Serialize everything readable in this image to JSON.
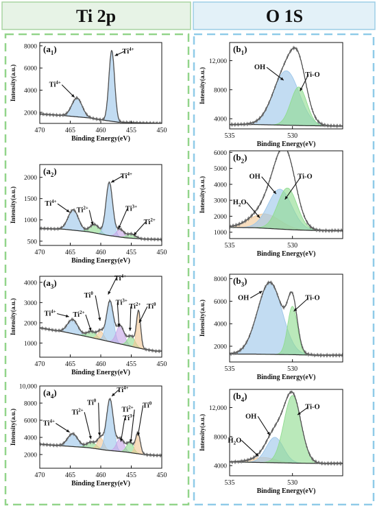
{
  "headers": {
    "left": "Ti 2p",
    "right": "O 1S"
  },
  "colors": {
    "header_left_bg": "#e7f3e6",
    "header_left_border": "#a8d4a2",
    "header_right_bg": "#e3f1f8",
    "header_right_border": "#9ccde6",
    "panel_left_border": "#92d48a",
    "panel_right_border": "#8fcbe8",
    "peak_blue": "#9cc6ea",
    "peak_green": "#8fdc8f",
    "peak_purple": "#c7a6e6",
    "peak_orange": "#f2c896",
    "raw": "#7a7a7a",
    "envelope": "#4a4a4a",
    "background": "#2a2a2a"
  },
  "chart_data": [
    {
      "id": "a1",
      "label_main": "a",
      "label_sub": "1",
      "type": "area",
      "xlabel": "Binding Energy(eV)",
      "ylabel": "Intensity(a.u.)",
      "xlim": [
        470,
        450
      ],
      "xticks": [
        470,
        465,
        460,
        455,
        450
      ],
      "ylim": [
        1000,
        8300
      ],
      "yticks": [
        2000,
        4000,
        6000,
        8000
      ],
      "ytick_labels": [
        "2000",
        "4000",
        "6000",
        "8000"
      ],
      "background_points": [
        [
          470,
          1850
        ],
        [
          466,
          1700
        ],
        [
          462,
          1500
        ],
        [
          459,
          1250
        ],
        [
          457,
          1100
        ],
        [
          454,
          1050
        ],
        [
          450,
          1000
        ]
      ],
      "peaks": [
        {
          "center": 463.9,
          "height": 1700,
          "fwhm": 2.0,
          "color": "blue"
        },
        {
          "center": 458.2,
          "height": 6400,
          "fwhm": 1.1,
          "color": "blue"
        }
      ],
      "annotations": [
        {
          "text": "Ti",
          "sup": "4+",
          "tx": 467.5,
          "ty": 4300,
          "ax": 464.3,
          "ay": 3350
        },
        {
          "text": "Ti",
          "sup": "4+",
          "tx": 455.5,
          "ty": 7300,
          "ax": 457.7,
          "ay": 7100
        }
      ]
    },
    {
      "id": "b1",
      "label_main": "b",
      "label_sub": "1",
      "type": "area",
      "xlabel": "Binding Energy(eV)",
      "ylabel": "Intensity(a.u.)",
      "xlim": [
        535,
        526
      ],
      "xticks": [
        535,
        530
      ],
      "ylim": [
        2600,
        14500
      ],
      "yticks": [
        4000,
        8000,
        12000
      ],
      "ytick_labels": [
        "4000",
        "8000",
        "12,000"
      ],
      "background_points": [
        [
          535,
          3200
        ],
        [
          533,
          3200
        ],
        [
          529,
          3050
        ],
        [
          527,
          3000
        ],
        [
          526,
          3000
        ]
      ],
      "peaks": [
        {
          "center": 530.5,
          "height": 7500,
          "fwhm": 2.4,
          "color": "blue"
        },
        {
          "center": 529.5,
          "height": 5300,
          "fwhm": 1.5,
          "color": "green"
        }
      ],
      "annotations": [
        {
          "text": "OH",
          "sup": "",
          "tx": 532.6,
          "ty": 10800,
          "ax": 530.7,
          "ay": 9300
        },
        {
          "text": "Ti-O",
          "sup": "",
          "tx": 528.4,
          "ty": 9800,
          "ax": 529.4,
          "ay": 7800
        }
      ]
    },
    {
      "id": "a2",
      "label_main": "a",
      "label_sub": "2",
      "type": "area",
      "xlabel": "Binding Energy(eV)",
      "ylabel": "Intensity(a.u.)",
      "xlim": [
        470,
        450
      ],
      "xticks": [
        470,
        465,
        460,
        455,
        450
      ],
      "ylim": [
        400,
        2300
      ],
      "yticks": [
        500,
        1000,
        1500,
        2000
      ],
      "ytick_labels": [
        "500",
        "1000",
        "1500",
        "2000"
      ],
      "background_points": [
        [
          470,
          800
        ],
        [
          466,
          780
        ],
        [
          462,
          720
        ],
        [
          459,
          640
        ],
        [
          456,
          580
        ],
        [
          453,
          550
        ],
        [
          450,
          540
        ]
      ],
      "peaks": [
        {
          "center": 464.5,
          "height": 480,
          "fwhm": 2.0,
          "color": "blue"
        },
        {
          "center": 461.0,
          "height": 200,
          "fwhm": 1.8,
          "color": "green"
        },
        {
          "center": 458.6,
          "height": 1250,
          "fwhm": 1.3,
          "color": "blue"
        },
        {
          "center": 456.8,
          "height": 180,
          "fwhm": 1.4,
          "color": "purple"
        },
        {
          "center": 455.0,
          "height": 100,
          "fwhm": 1.6,
          "color": "green"
        }
      ],
      "annotations": [
        {
          "text": "Ti",
          "sup": "4+",
          "tx": 468.2,
          "ty": 1330,
          "ax": 465.1,
          "ay": 1180
        },
        {
          "text": "Ti",
          "sup": "2+",
          "tx": 463.0,
          "ty": 1180,
          "ax": 461.3,
          "ay": 880
        },
        {
          "text": "Ti",
          "sup": "4+",
          "tx": 455.8,
          "ty": 1980,
          "ax": 458.3,
          "ay": 1880
        },
        {
          "text": "Ti",
          "sup": "3+",
          "tx": 455.0,
          "ty": 1210,
          "ax": 457.1,
          "ay": 790
        },
        {
          "text": "Ti",
          "sup": "2+",
          "tx": 452.0,
          "ty": 900,
          "ax": 454.6,
          "ay": 640
        }
      ]
    },
    {
      "id": "b2",
      "label_main": "b",
      "label_sub": "2",
      "type": "area",
      "xlabel": "Binding Energy(eV)",
      "ylabel": "Intensity(a.u.)",
      "xlim": [
        535,
        526
      ],
      "xticks": [
        535,
        530
      ],
      "ylim": [
        600,
        6100
      ],
      "yticks": [
        1000,
        2000,
        3000,
        4000,
        5000,
        6000
      ],
      "ytick_labels": [
        "1000",
        "2000",
        "3000",
        "4000",
        "5000",
        "6000"
      ],
      "background_points": [
        [
          535,
          1300
        ],
        [
          533,
          1280
        ],
        [
          530,
          1150
        ],
        [
          528,
          1100
        ],
        [
          526,
          1100
        ]
      ],
      "peaks": [
        {
          "center": 532.2,
          "height": 900,
          "fwhm": 2.8,
          "color": "orange"
        },
        {
          "center": 531.0,
          "height": 2500,
          "fwhm": 2.2,
          "color": "blue"
        },
        {
          "center": 530.4,
          "height": 2600,
          "fwhm": 1.8,
          "color": "green"
        }
      ],
      "annotations": [
        {
          "text": "OH",
          "sup": "",
          "tx": 533.0,
          "ty": 4350,
          "ax": 531.3,
          "ay": 3400
        },
        {
          "text": "Ti-O",
          "sup": "",
          "tx": 529.0,
          "ty": 4350,
          "ax": 530.6,
          "ay": 3050
        },
        {
          "text": "H",
          "sub": "2",
          "after": "O",
          "tx": 534.2,
          "ty": 2750,
          "ax": 532.6,
          "ay": 1900
        }
      ]
    },
    {
      "id": "a3",
      "label_main": "a",
      "label_sub": "3",
      "type": "area",
      "xlabel": "Binding Energy(eV)",
      "ylabel": "Intensity(a.u.)",
      "xlim": [
        470,
        450
      ],
      "xticks": [
        470,
        465,
        460,
        455,
        450
      ],
      "ylim": [
        300,
        4300
      ],
      "yticks": [
        1000,
        2000,
        3000,
        4000
      ],
      "ytick_labels": [
        "1000",
        "2000",
        "3000",
        "4000"
      ],
      "background_points": [
        [
          470,
          1750
        ],
        [
          466,
          1550
        ],
        [
          462,
          1300
        ],
        [
          459,
          1100
        ],
        [
          456,
          900
        ],
        [
          453,
          700
        ],
        [
          451,
          600
        ],
        [
          450,
          600
        ]
      ],
      "peaks": [
        {
          "center": 464.6,
          "height": 700,
          "fwhm": 2.0,
          "color": "blue"
        },
        {
          "center": 461.5,
          "height": 300,
          "fwhm": 1.8,
          "color": "green"
        },
        {
          "center": 460.0,
          "height": 400,
          "fwhm": 1.2,
          "color": "orange"
        },
        {
          "center": 458.5,
          "height": 2000,
          "fwhm": 1.3,
          "color": "blue"
        },
        {
          "center": 456.8,
          "height": 900,
          "fwhm": 1.5,
          "color": "purple"
        },
        {
          "center": 455.0,
          "height": 500,
          "fwhm": 1.4,
          "color": "green"
        },
        {
          "center": 453.8,
          "height": 1800,
          "fwhm": 0.8,
          "color": "orange"
        }
      ],
      "annotations": [
        {
          "text": "Ti",
          "sup": "4+",
          "tx": 468.3,
          "ty": 2350,
          "ax": 465.2,
          "ay": 2300
        },
        {
          "text": "Ti",
          "sup": "2+",
          "tx": 463.6,
          "ty": 2300,
          "ax": 461.6,
          "ay": 1600
        },
        {
          "text": "Ti",
          "sup": "0",
          "tx": 462.0,
          "ty": 3250,
          "ax": 460.1,
          "ay": 2100
        },
        {
          "text": "Ti",
          "sup": "4+",
          "tx": 456.8,
          "ty": 4100,
          "ax": 458.8,
          "ay": 3400
        },
        {
          "text": "Ti",
          "sup": "3+",
          "tx": 456.6,
          "ty": 2900,
          "ax": 457.0,
          "ay": 1800
        },
        {
          "text": "Ti",
          "sup": "2+",
          "tx": 454.4,
          "ty": 2700,
          "ax": 455.2,
          "ay": 1600
        },
        {
          "text": "Ti",
          "sup": "0",
          "tx": 451.7,
          "ty": 2700,
          "ax": 453.7,
          "ay": 2000
        }
      ]
    },
    {
      "id": "b3",
      "label_main": "b",
      "label_sub": "3",
      "type": "area",
      "xlabel": "Binding Energy(eV)",
      "ylabel": "Intensity(a.u.)",
      "xlim": [
        535,
        526
      ],
      "xticks": [
        535,
        530
      ],
      "ylim": [
        600,
        8400
      ],
      "yticks": [
        2000,
        4000,
        6000,
        8000
      ],
      "ytick_labels": [
        "2000",
        "4000",
        "6000",
        "8000"
      ],
      "background_points": [
        [
          535,
          1300
        ],
        [
          533,
          1300
        ],
        [
          530,
          1250
        ],
        [
          528,
          1200
        ],
        [
          526,
          1200
        ]
      ],
      "peaks": [
        {
          "center": 531.8,
          "height": 6400,
          "fwhm": 2.3,
          "color": "blue"
        },
        {
          "center": 530.0,
          "height": 4300,
          "fwhm": 0.9,
          "color": "green"
        }
      ],
      "annotations": [
        {
          "text": "OH",
          "sup": "",
          "tx": 533.9,
          "ty": 6100,
          "ax": 532.4,
          "ay": 6900
        },
        {
          "text": "Ti-O",
          "sup": "",
          "tx": 528.4,
          "ty": 6100,
          "ax": 529.9,
          "ay": 5100
        }
      ]
    },
    {
      "id": "a4",
      "label_main": "a",
      "label_sub": "4",
      "type": "area",
      "xlabel": "Binding Energy(eV)",
      "ylabel": "Intensity(a.u.)",
      "xlim": [
        470,
        450
      ],
      "xticks": [
        470,
        465,
        460,
        455,
        450
      ],
      "ylim": [
        400,
        10000
      ],
      "yticks": [
        2000,
        4000,
        6000,
        8000,
        10000
      ],
      "ytick_labels": [
        "2000",
        "4000",
        "6000",
        "8000",
        "10,000"
      ],
      "background_points": [
        [
          470,
          3200
        ],
        [
          466,
          3000
        ],
        [
          462,
          2800
        ],
        [
          459,
          2500
        ],
        [
          456,
          2300
        ],
        [
          453,
          2000
        ],
        [
          451,
          1900
        ],
        [
          450,
          1900
        ]
      ],
      "peaks": [
        {
          "center": 464.6,
          "height": 1500,
          "fwhm": 2.0,
          "color": "blue"
        },
        {
          "center": 461.5,
          "height": 700,
          "fwhm": 1.8,
          "color": "green"
        },
        {
          "center": 460.0,
          "height": 1300,
          "fwhm": 1.2,
          "color": "orange"
        },
        {
          "center": 458.5,
          "height": 6000,
          "fwhm": 1.3,
          "color": "blue"
        },
        {
          "center": 456.8,
          "height": 1500,
          "fwhm": 1.4,
          "color": "purple"
        },
        {
          "center": 455.2,
          "height": 1200,
          "fwhm": 1.3,
          "color": "green"
        },
        {
          "center": 453.9,
          "height": 2400,
          "fwhm": 0.9,
          "color": "orange"
        }
      ],
      "annotations": [
        {
          "text": "Ti",
          "sup": "4+",
          "tx": 468.5,
          "ty": 5400,
          "ax": 465.1,
          "ay": 4600
        },
        {
          "text": "Ti",
          "sup": "2+",
          "tx": 463.8,
          "ty": 6700,
          "ax": 461.6,
          "ay": 3800
        },
        {
          "text": "Ti",
          "sup": "0",
          "tx": 461.5,
          "ty": 7800,
          "ax": 460.2,
          "ay": 4200
        },
        {
          "text": "Ti",
          "sup": "4+",
          "tx": 456.4,
          "ty": 9300,
          "ax": 458.2,
          "ay": 8800
        },
        {
          "text": "Ti",
          "sup": "3+",
          "tx": 455.4,
          "ty": 6000,
          "ax": 456.7,
          "ay": 3500
        },
        {
          "text": "Ti",
          "sup": "2+",
          "tx": 455.6,
          "ty": 7000,
          "ax": 455.1,
          "ay": 3400
        },
        {
          "text": "Ti",
          "sup": "0",
          "tx": 452.4,
          "ty": 7500,
          "ax": 453.9,
          "ay": 4200
        }
      ]
    },
    {
      "id": "b4",
      "label_main": "b",
      "label_sub": "4",
      "type": "area",
      "xlabel": "Binding Energy(eV)",
      "ylabel": "Intensity(a.u.)",
      "xlim": [
        535,
        526
      ],
      "xticks": [
        535,
        530
      ],
      "ylim": [
        2600,
        14500
      ],
      "yticks": [
        4000,
        8000,
        12000
      ],
      "ytick_labels": [
        "4000",
        "8000",
        "12,000"
      ],
      "background_points": [
        [
          535,
          4500
        ],
        [
          533,
          4450
        ],
        [
          530,
          4350
        ],
        [
          528,
          4300
        ],
        [
          526,
          4300
        ]
      ],
      "peaks": [
        {
          "center": 532.3,
          "height": 700,
          "fwhm": 2.2,
          "color": "orange"
        },
        {
          "center": 531.4,
          "height": 3500,
          "fwhm": 1.6,
          "color": "blue"
        },
        {
          "center": 530.0,
          "height": 9300,
          "fwhm": 1.6,
          "color": "green"
        }
      ],
      "annotations": [
        {
          "text": "OH",
          "sup": "",
          "tx": 533.3,
          "ty": 10500,
          "ax": 531.8,
          "ay": 8200
        },
        {
          "text": "Ti-O",
          "sup": "",
          "tx": 528.4,
          "ty": 11800,
          "ax": 529.6,
          "ay": 11000
        },
        {
          "text": "H",
          "sub": "2",
          "after": "O",
          "tx": 534.6,
          "ty": 7200,
          "ax": 532.7,
          "ay": 5300
        }
      ]
    }
  ]
}
